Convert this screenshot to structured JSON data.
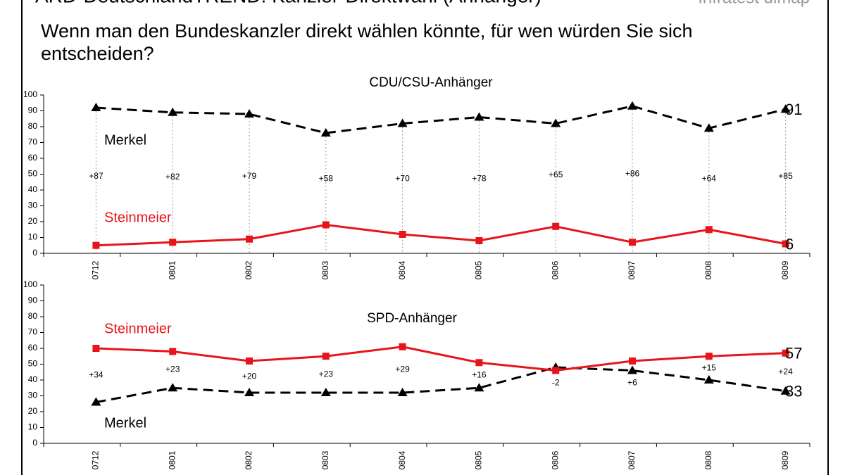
{
  "header": {
    "title": "ARD-DeutschlandTREND: Kanzler-Direktwahl (Anhänger)",
    "source": "Infratest dimap",
    "question": "Wenn man den Bundeskanzler direkt wählen könnte, für wen würden Sie sich entscheiden?"
  },
  "chart_data": [
    {
      "type": "line",
      "title": "CDU/CSU-Anhänger",
      "categories": [
        "0712",
        "0801",
        "0802",
        "0803",
        "0804",
        "0805",
        "0806",
        "0807",
        "0808",
        "0809"
      ],
      "series": [
        {
          "name": "Merkel",
          "color": "#000000",
          "dashed": true,
          "values": [
            92,
            89,
            88,
            76,
            82,
            86,
            82,
            93,
            79,
            91
          ]
        },
        {
          "name": "Steinmeier",
          "color": "#e8141b",
          "dashed": false,
          "values": [
            5,
            7,
            9,
            18,
            12,
            8,
            17,
            7,
            15,
            6
          ]
        }
      ],
      "annotations": [
        "+87",
        "+82",
        "+79",
        "+58",
        "+70",
        "+78",
        "+65",
        "+86",
        "+64",
        "+85"
      ],
      "ylim": [
        0,
        100
      ],
      "yticks": [
        0,
        10,
        20,
        30,
        40,
        50,
        60,
        70,
        80,
        90,
        100
      ],
      "drop_lines": true
    },
    {
      "type": "line",
      "title": "SPD-Anhänger",
      "categories": [
        "0712",
        "0801",
        "0802",
        "0803",
        "0804",
        "0805",
        "0806",
        "0807",
        "0808",
        "0809"
      ],
      "series": [
        {
          "name": "Merkel",
          "color": "#000000",
          "dashed": true,
          "values": [
            26,
            35,
            32,
            32,
            32,
            35,
            48,
            46,
            40,
            33
          ]
        },
        {
          "name": "Steinmeier",
          "color": "#e8141b",
          "dashed": false,
          "values": [
            60,
            58,
            52,
            55,
            61,
            51,
            46,
            52,
            55,
            57
          ]
        }
      ],
      "annotations": [
        "+34",
        "+23",
        "+20",
        "+23",
        "+29",
        "+16",
        "-2",
        "+6",
        "+15",
        "+24"
      ],
      "ylim": [
        0,
        100
      ],
      "yticks": [
        0,
        10,
        20,
        30,
        40,
        50,
        60,
        70,
        80,
        90,
        100
      ],
      "drop_lines": false
    }
  ]
}
